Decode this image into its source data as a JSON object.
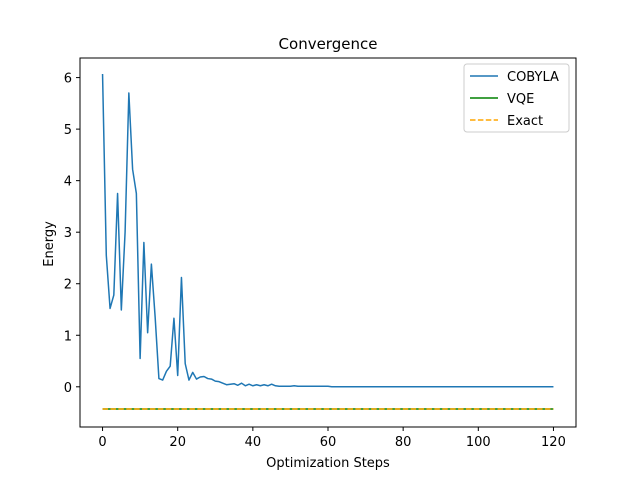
{
  "chart_data": {
    "type": "line",
    "title": "Convergence",
    "xlabel": "Optimization Steps",
    "ylabel": "Energy",
    "xlim": [
      -6,
      126
    ],
    "ylim": [
      -0.78,
      6.38
    ],
    "xticks": [
      0,
      20,
      40,
      60,
      80,
      100,
      120
    ],
    "yticks": [
      0,
      1,
      2,
      3,
      4,
      5,
      6
    ],
    "grid": false,
    "legend_position": "top-right",
    "series": [
      {
        "name": "COBYLA",
        "style": "solid",
        "color": "#1f77b4",
        "x": [
          0,
          1,
          2,
          3,
          4,
          5,
          6,
          7,
          8,
          9,
          10,
          11,
          12,
          13,
          14,
          15,
          16,
          17,
          18,
          19,
          20,
          21,
          22,
          23,
          24,
          25,
          26,
          27,
          28,
          29,
          30,
          31,
          32,
          33,
          34,
          35,
          36,
          37,
          38,
          39,
          40,
          41,
          42,
          43,
          44,
          45,
          46,
          47,
          48,
          49,
          50,
          51,
          52,
          53,
          54,
          55,
          56,
          57,
          58,
          59,
          60,
          61,
          62,
          63,
          64,
          65,
          66,
          67,
          68,
          69,
          70,
          71,
          72,
          73,
          74,
          75,
          76,
          77,
          78,
          79,
          80,
          81,
          82,
          83,
          84,
          85,
          86,
          87,
          88,
          89,
          90,
          91,
          92,
          93,
          94,
          95,
          96,
          97,
          98,
          99,
          100,
          101,
          102,
          103,
          104,
          105,
          106,
          107,
          108,
          109,
          110,
          111,
          112,
          113,
          114,
          115,
          116,
          117,
          118,
          119,
          120
        ],
        "y": [
          6.07,
          2.55,
          1.52,
          1.78,
          3.75,
          1.49,
          3.0,
          5.7,
          4.22,
          3.75,
          0.55,
          2.8,
          1.05,
          2.38,
          1.35,
          0.16,
          0.13,
          0.3,
          0.4,
          1.33,
          0.22,
          2.12,
          0.45,
          0.13,
          0.28,
          0.15,
          0.19,
          0.2,
          0.16,
          0.15,
          0.11,
          0.1,
          0.07,
          0.04,
          0.05,
          0.06,
          0.03,
          0.07,
          0.02,
          0.05,
          0.02,
          0.04,
          0.02,
          0.04,
          0.02,
          0.05,
          0.02,
          0.01,
          0.01,
          0.01,
          0.01,
          0.02,
          0.01,
          0.01,
          0.01,
          0.01,
          0.01,
          0.01,
          0.01,
          0.01,
          0.01,
          0.0,
          0.0,
          0.0,
          0.0,
          0.0,
          0.0,
          0.0,
          0.0,
          0.0,
          0.0,
          0.0,
          0.0,
          0.0,
          0.0,
          0.0,
          0.0,
          0.0,
          0.0,
          0.0,
          0.0,
          0.0,
          0.0,
          0.0,
          0.0,
          0.0,
          0.0,
          0.0,
          0.0,
          0.0,
          0.0,
          0.0,
          0.0,
          0.0,
          0.0,
          0.0,
          0.0,
          0.0,
          0.0,
          0.0,
          0.0,
          0.0,
          0.0,
          0.0,
          0.0,
          0.0,
          0.0,
          0.0,
          0.0,
          0.0,
          0.0,
          0.0,
          0.0,
          0.0,
          0.0,
          0.0,
          0.0,
          0.0,
          0.0,
          0.0,
          0.0
        ]
      },
      {
        "name": "VQE",
        "style": "solid",
        "color": "#008000",
        "x": [
          0,
          120
        ],
        "y": [
          -0.43,
          -0.43
        ]
      },
      {
        "name": "Exact",
        "style": "dashed",
        "color": "#ffa500",
        "x": [
          0,
          120
        ],
        "y": [
          -0.43,
          -0.43
        ]
      }
    ]
  }
}
